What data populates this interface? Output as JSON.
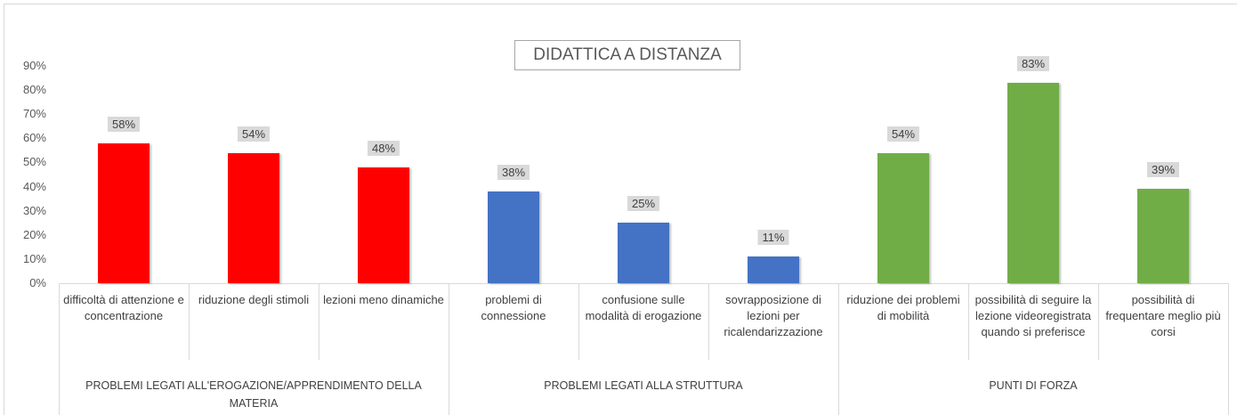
{
  "chart_data": {
    "type": "bar",
    "title": "DIDATTICA A DISTANZA",
    "ylim": [
      0,
      90
    ],
    "yticks": [
      {
        "value": 0,
        "label": "0%"
      },
      {
        "value": 10,
        "label": "10%"
      },
      {
        "value": 20,
        "label": "20%"
      },
      {
        "value": 30,
        "label": "30%"
      },
      {
        "value": 40,
        "label": "40%"
      },
      {
        "value": 50,
        "label": "50%"
      },
      {
        "value": 60,
        "label": "60%"
      },
      {
        "value": 70,
        "label": "70%"
      },
      {
        "value": 80,
        "label": "80%"
      },
      {
        "value": 90,
        "label": "90%"
      }
    ],
    "grid": false,
    "groups": [
      {
        "name": "PROBLEMI LEGATI ALL'EROGAZIONE/APPRENDIMENTO DELLA MATERIA",
        "color": "#ff0000",
        "categories": [
          "difficoltà di attenzione e concentrazione",
          "riduzione degli stimoli",
          "lezioni meno dinamiche"
        ],
        "values": [
          58,
          54,
          48
        ],
        "value_labels": [
          "58%",
          "54%",
          "48%"
        ]
      },
      {
        "name": "PROBLEMI LEGATI ALLA STRUTTURA",
        "color": "#4472c4",
        "categories": [
          "problemi di connessione",
          "confusione sulle modalità di erogazione",
          "sovrapposizione di lezioni per ricalendarizzazione"
        ],
        "values": [
          38,
          25,
          11
        ],
        "value_labels": [
          "38%",
          "25%",
          "11%"
        ]
      },
      {
        "name": "PUNTI DI FORZA",
        "color": "#70ad47",
        "categories": [
          "riduzione dei problemi di mobilità",
          "possibilità di seguire la lezione videoregistrata quando si preferisce",
          "possibilità di frequentare meglio più corsi"
        ],
        "values": [
          54,
          83,
          39
        ],
        "value_labels": [
          "54%",
          "83%",
          "39%"
        ]
      }
    ]
  }
}
